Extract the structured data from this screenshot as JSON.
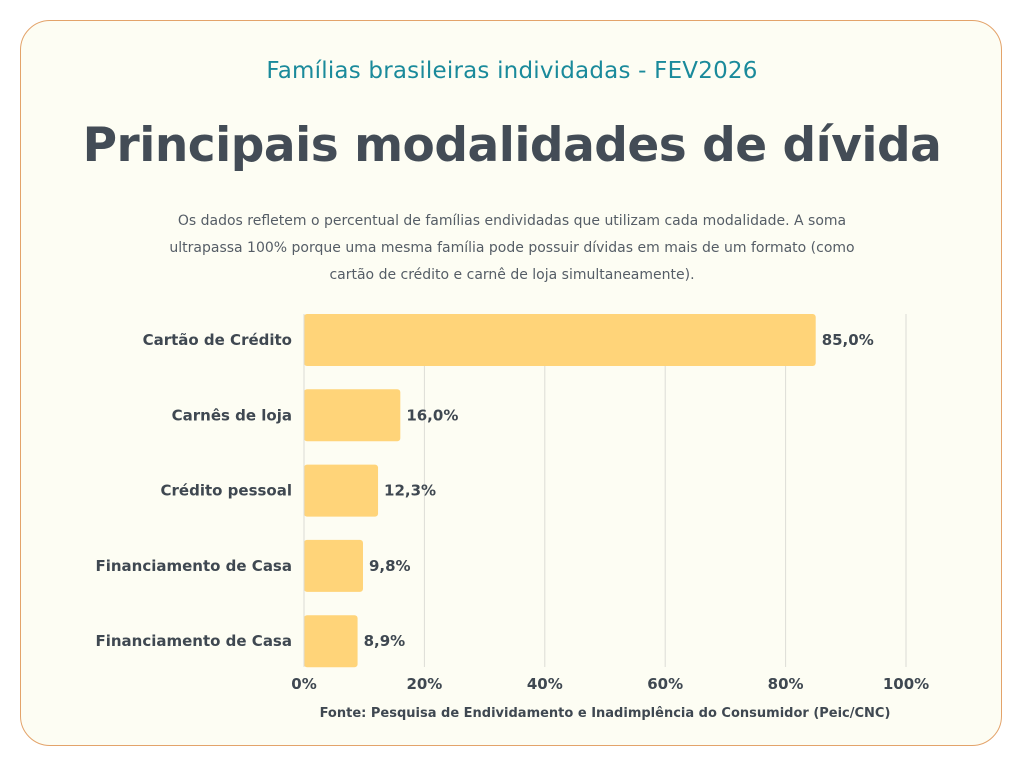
{
  "header": {
    "subtitle": "Famílias brasileiras individadas - FEV2026",
    "title": "Principais modalidades de dívida",
    "description": "Os dados refletem o percentual de famílias endividadas que utilizam cada modalidade. A soma ultrapassa 100% porque uma mesma família pode possuir dívidas em mais de um formato (como cartão de crédito e carnê de loja simultaneamente)."
  },
  "footer": {
    "source": "Fonte: Pesquisa de Endividamento e Inadimplência do Consumidor (Peic/CNC)"
  },
  "colors": {
    "bar": "#ffd479",
    "grid": "#dcdcd6",
    "text": "#3f4851",
    "subtitle": "#1a8a9b",
    "border": "#e3a36a",
    "background": "#fdfdf3"
  },
  "chart_data": {
    "type": "bar",
    "orientation": "horizontal",
    "categories": [
      "Cartão de Crédito",
      "Carnês de loja",
      "Crédito pessoal",
      "Financiamento de Casa",
      "Financiamento de Casa"
    ],
    "values": [
      85.0,
      16.0,
      12.3,
      9.8,
      8.9
    ],
    "value_labels": [
      "85,0%",
      "16,0%",
      "12,3%",
      "9,8%",
      "8,9%"
    ],
    "xlim": [
      0,
      100
    ],
    "xticks": [
      0,
      20,
      40,
      60,
      80,
      100
    ],
    "xtick_labels": [
      "0%",
      "20%",
      "40%",
      "60%",
      "80%",
      "100%"
    ],
    "grid": true
  }
}
